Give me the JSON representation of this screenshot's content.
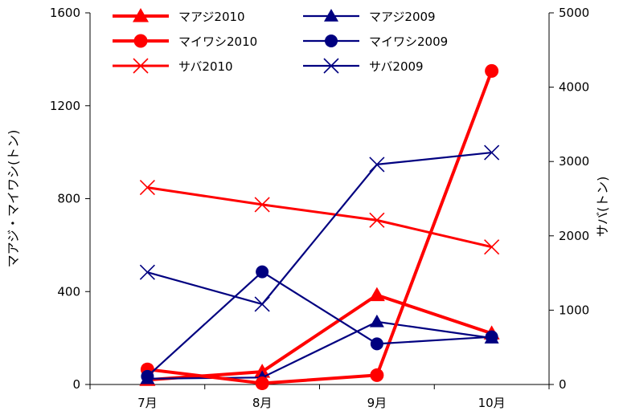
{
  "chart_data": {
    "type": "line",
    "categories": [
      "7月",
      "8月",
      "9月",
      "10月"
    ],
    "ylabel_left": "マアジ・マイワシ(トン)",
    "ylabel_right": "サバ(トン)",
    "ylim_left": [
      0,
      1600
    ],
    "ylim_right": [
      0,
      5000
    ],
    "yticks_left": [
      "0",
      "400",
      "800",
      "1200",
      "1600"
    ],
    "yticks_right": [
      "0",
      "1000",
      "2000",
      "3000",
      "4000",
      "5000"
    ],
    "grid": false,
    "legend_position": "top-left",
    "series": [
      {
        "name": "マアジ2010",
        "axis": "left",
        "marker": "triangle",
        "color": "#ff0000",
        "width": 4,
        "values": [
          20,
          55,
          385,
          220
        ]
      },
      {
        "name": "マアジ2009",
        "axis": "left",
        "marker": "triangle",
        "color": "#000080",
        "width": 2.2,
        "values": [
          25,
          30,
          270,
          200
        ]
      },
      {
        "name": "マイワシ2010",
        "axis": "left",
        "marker": "circle",
        "color": "#ff0000",
        "width": 4,
        "values": [
          65,
          5,
          40,
          1350
        ]
      },
      {
        "name": "マイワシ2009",
        "axis": "left",
        "marker": "circle",
        "color": "#000080",
        "width": 2.2,
        "values": [
          35,
          485,
          175,
          205
        ]
      },
      {
        "name": "サバ2010",
        "axis": "right",
        "marker": "x",
        "color": "#ff0000",
        "width": 3,
        "values": [
          2650,
          2420,
          2210,
          1850
        ]
      },
      {
        "name": "サバ2009",
        "axis": "right",
        "marker": "x",
        "color": "#000080",
        "width": 2.2,
        "values": [
          1510,
          1080,
          2960,
          3120
        ]
      }
    ]
  }
}
